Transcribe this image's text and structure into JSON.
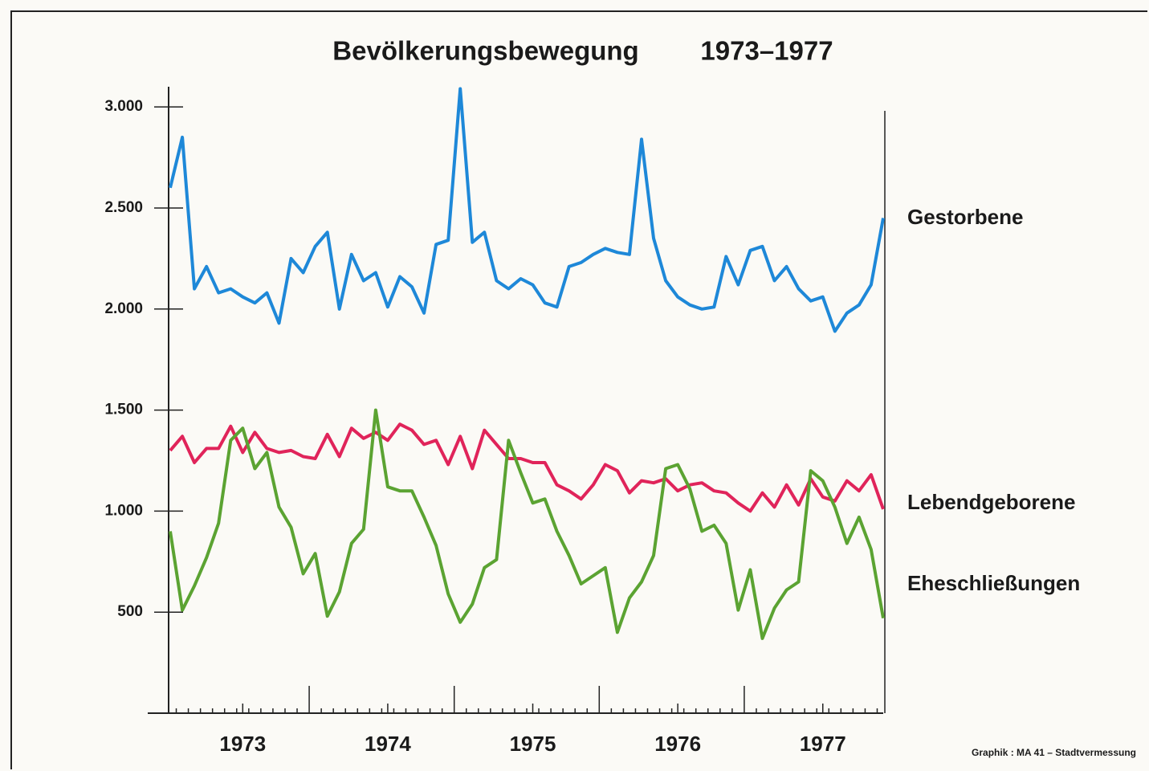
{
  "chart_data": {
    "type": "line",
    "title": "Bevölkerungsbewegung",
    "subtitle": "1973–1977",
    "source": "Graphik :  MA 41 – Stadtvermessung",
    "categories": [
      null,
      null,
      null,
      null,
      null,
      null,
      "1973",
      null,
      null,
      null,
      null,
      null,
      null,
      null,
      null,
      null,
      null,
      null,
      "1974",
      null,
      null,
      null,
      null,
      null,
      null,
      null,
      null,
      null,
      null,
      null,
      "1975",
      null,
      null,
      null,
      null,
      null,
      null,
      null,
      null,
      null,
      null,
      null,
      "1976",
      null,
      null,
      null,
      null,
      null,
      null,
      null,
      null,
      null,
      null,
      null,
      "1977",
      null,
      null,
      null,
      null,
      null
    ],
    "series": [
      {
        "name": "Gestorbene",
        "color": "#1e88d8",
        "values": [
          2600,
          2850,
          2100,
          2210,
          2080,
          2100,
          2060,
          2030,
          2080,
          1930,
          2250,
          2180,
          2310,
          2380,
          2000,
          2270,
          2140,
          2180,
          2010,
          2160,
          2110,
          1980,
          2320,
          2340,
          3090,
          2330,
          2380,
          2140,
          2100,
          2150,
          2120,
          2030,
          2010,
          2210,
          2230,
          2270,
          2300,
          2280,
          2270,
          2840,
          2350,
          2140,
          2060,
          2020,
          2000,
          2010,
          2260,
          2120,
          2290,
          2310,
          2140,
          2210,
          2100,
          2040,
          2060,
          1890,
          1980,
          2020,
          2120,
          2450
        ]
      },
      {
        "name": "Lebendgeborene",
        "color": "#e0245a",
        "values": [
          1300,
          1370,
          1240,
          1310,
          1310,
          1420,
          1290,
          1390,
          1310,
          1290,
          1300,
          1270,
          1260,
          1380,
          1270,
          1410,
          1360,
          1390,
          1350,
          1430,
          1400,
          1330,
          1350,
          1230,
          1370,
          1210,
          1400,
          1330,
          1260,
          1260,
          1240,
          1240,
          1130,
          1100,
          1060,
          1130,
          1230,
          1200,
          1090,
          1150,
          1140,
          1160,
          1100,
          1130,
          1140,
          1100,
          1090,
          1040,
          1000,
          1090,
          1020,
          1130,
          1030,
          1160,
          1070,
          1050,
          1150,
          1100,
          1180,
          1010
        ]
      },
      {
        "name": "Eheschließungen",
        "color": "#5ba332",
        "values": [
          900,
          510,
          630,
          770,
          940,
          1350,
          1410,
          1210,
          1290,
          1020,
          920,
          690,
          790,
          480,
          600,
          840,
          910,
          1500,
          1120,
          1100,
          1100,
          970,
          830,
          590,
          450,
          540,
          720,
          760,
          1350,
          1190,
          1040,
          1060,
          900,
          780,
          640,
          680,
          720,
          400,
          570,
          650,
          780,
          1210,
          1230,
          1110,
          900,
          930,
          840,
          510,
          710,
          370,
          520,
          610,
          650,
          1200,
          1150,
          1020,
          840,
          970,
          810,
          470
        ]
      }
    ],
    "ylim": [
      0,
      3100
    ],
    "yticks": [
      500,
      {
        "value": 1000,
        "label": "1.000"
      },
      {
        "value": 1500,
        "label": "1.500"
      },
      {
        "value": 2000,
        "label": "2.000"
      },
      {
        "value": 2500,
        "label": "2.500"
      },
      {
        "value": 3000,
        "label": "3.000"
      }
    ]
  }
}
